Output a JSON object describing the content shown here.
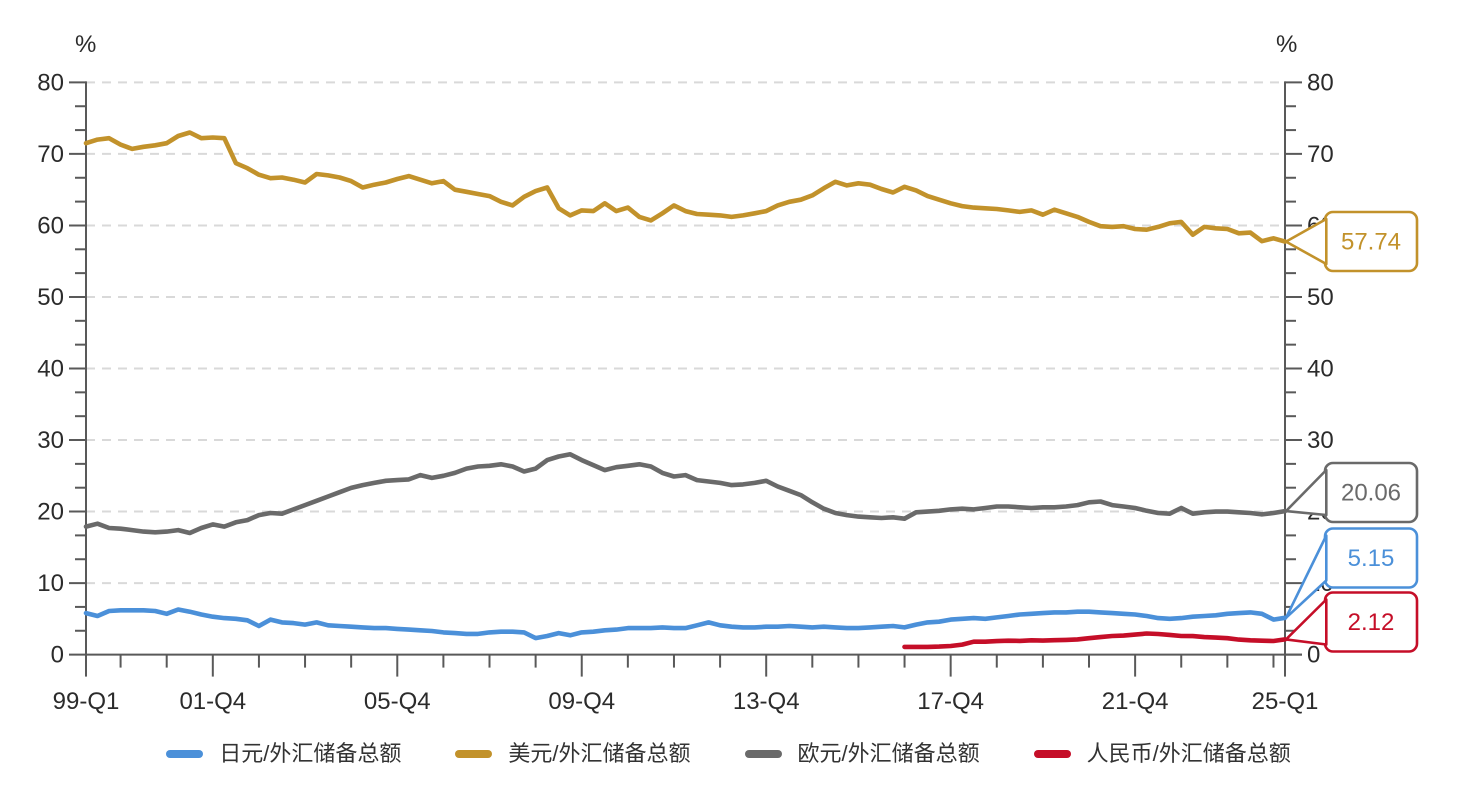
{
  "chart_data": {
    "type": "line",
    "title": "",
    "x_unit": "quarter",
    "x_start": "1999-Q1",
    "x_end": "2025-Q1",
    "x_tick_labels": [
      {
        "label": "99-Q1",
        "q": 0
      },
      {
        "label": "01-Q4",
        "q": 11
      },
      {
        "label": "05-Q4",
        "q": 27
      },
      {
        "label": "09-Q4",
        "q": 43
      },
      {
        "label": "13-Q4",
        "q": 59
      },
      {
        "label": "17-Q4",
        "q": 75
      },
      {
        "label": "21-Q4",
        "q": 91
      },
      {
        "label": "25-Q1",
        "q": 104
      }
    ],
    "y_axis": {
      "unit_left": "%",
      "unit_right": "%",
      "min": 0,
      "max": 80,
      "major_step": 10,
      "minor_divisions_per_major": 3,
      "labels": [
        "0",
        "10",
        "20",
        "30",
        "40",
        "50",
        "60",
        "70",
        "80"
      ]
    },
    "grid": {
      "style": "dashed-horizontal",
      "color": "#D9D9D9"
    },
    "legend_position": "bottom",
    "series": [
      {
        "key": "jpy",
        "name": "日元/外汇储备总额",
        "color": "#4B90D9",
        "start_q": 0,
        "end_value_label": "5.15",
        "values": [
          5.8,
          5.4,
          6.1,
          6.2,
          6.2,
          6.2,
          6.1,
          5.7,
          6.3,
          6.0,
          5.6,
          5.3,
          5.1,
          5.0,
          4.8,
          4.0,
          4.9,
          4.5,
          4.4,
          4.2,
          4.5,
          4.1,
          4.0,
          3.9,
          3.8,
          3.7,
          3.7,
          3.6,
          3.5,
          3.4,
          3.3,
          3.1,
          3.0,
          2.9,
          2.9,
          3.1,
          3.2,
          3.2,
          3.1,
          2.3,
          2.6,
          3.0,
          2.7,
          3.1,
          3.2,
          3.4,
          3.5,
          3.7,
          3.7,
          3.7,
          3.8,
          3.7,
          3.7,
          4.1,
          4.5,
          4.1,
          3.9,
          3.8,
          3.8,
          3.9,
          3.9,
          4.0,
          3.9,
          3.8,
          3.9,
          3.8,
          3.7,
          3.7,
          3.8,
          3.9,
          4.0,
          3.8,
          4.2,
          4.5,
          4.6,
          4.9,
          5.0,
          5.1,
          5.0,
          5.2,
          5.4,
          5.6,
          5.7,
          5.8,
          5.9,
          5.9,
          6.0,
          6.0,
          5.9,
          5.8,
          5.7,
          5.6,
          5.4,
          5.1,
          5.0,
          5.1,
          5.3,
          5.4,
          5.5,
          5.7,
          5.8,
          5.9,
          5.7,
          4.9,
          5.15
        ]
      },
      {
        "key": "usd",
        "name": "美元/外汇储备总额",
        "color": "#C2922B",
        "start_q": 0,
        "end_value_label": "57.74",
        "values": [
          71.5,
          72.0,
          72.2,
          71.3,
          70.7,
          71.0,
          71.2,
          71.5,
          72.5,
          73.0,
          72.2,
          72.3,
          72.2,
          68.7,
          68.0,
          67.1,
          66.6,
          66.7,
          66.4,
          66.0,
          67.2,
          67.0,
          66.7,
          66.2,
          65.3,
          65.7,
          66.0,
          66.5,
          66.9,
          66.4,
          65.9,
          66.2,
          65.0,
          64.7,
          64.4,
          64.1,
          63.3,
          62.8,
          64.0,
          64.8,
          65.3,
          62.4,
          61.4,
          62.1,
          62.0,
          63.1,
          62.0,
          62.5,
          61.2,
          60.7,
          61.7,
          62.8,
          62.0,
          61.6,
          61.5,
          61.4,
          61.2,
          61.4,
          61.7,
          62.0,
          62.8,
          63.3,
          63.6,
          64.2,
          65.2,
          66.1,
          65.6,
          65.9,
          65.7,
          65.1,
          64.6,
          65.4,
          64.9,
          64.1,
          63.6,
          63.1,
          62.7,
          62.5,
          62.4,
          62.3,
          62.1,
          61.9,
          62.1,
          61.5,
          62.2,
          61.7,
          61.2,
          60.5,
          59.9,
          59.8,
          59.9,
          59.5,
          59.4,
          59.8,
          60.3,
          60.5,
          58.7,
          59.8,
          59.6,
          59.5,
          58.9,
          59.0,
          57.8,
          58.2,
          57.74
        ]
      },
      {
        "key": "eur",
        "name": "欧元/外汇储备总额",
        "color": "#6A6A6A",
        "start_q": 0,
        "end_value_label": "20.06",
        "values": [
          17.9,
          18.3,
          17.7,
          17.6,
          17.4,
          17.2,
          17.1,
          17.2,
          17.4,
          17.0,
          17.7,
          18.2,
          17.9,
          18.5,
          18.8,
          19.5,
          19.8,
          19.7,
          20.3,
          20.9,
          21.5,
          22.1,
          22.7,
          23.3,
          23.7,
          24.0,
          24.3,
          24.4,
          24.5,
          25.1,
          24.7,
          25.0,
          25.4,
          26.0,
          26.3,
          26.4,
          26.6,
          26.3,
          25.6,
          26.0,
          27.2,
          27.7,
          28.0,
          27.2,
          26.5,
          25.8,
          26.2,
          26.4,
          26.6,
          26.3,
          25.4,
          24.9,
          25.1,
          24.4,
          24.2,
          24.0,
          23.7,
          23.8,
          24.0,
          24.3,
          23.5,
          22.9,
          22.3,
          21.3,
          20.4,
          19.8,
          19.5,
          19.3,
          19.2,
          19.1,
          19.2,
          19.0,
          19.9,
          20.0,
          20.1,
          20.3,
          20.4,
          20.3,
          20.5,
          20.7,
          20.7,
          20.6,
          20.5,
          20.6,
          20.6,
          20.7,
          20.9,
          21.3,
          21.4,
          20.9,
          20.7,
          20.5,
          20.1,
          19.8,
          19.7,
          20.5,
          19.7,
          19.9,
          20.0,
          20.0,
          19.9,
          19.8,
          19.6,
          19.8,
          20.06
        ]
      },
      {
        "key": "cny",
        "name": "人民币/外汇储备总额",
        "color": "#C50E28",
        "start_q": 71,
        "end_value_label": "2.12",
        "values": [
          1.08,
          1.08,
          1.07,
          1.12,
          1.2,
          1.4,
          1.8,
          1.8,
          1.89,
          1.95,
          1.92,
          2.0,
          1.96,
          2.02,
          2.05,
          2.13,
          2.29,
          2.45,
          2.6,
          2.66,
          2.79,
          2.95,
          2.88,
          2.75,
          2.6,
          2.58,
          2.45,
          2.37,
          2.29,
          2.1,
          2.0,
          1.95,
          1.9,
          2.12
        ]
      }
    ]
  },
  "legend": {
    "items": [
      {
        "label": "日元/外汇储备总额",
        "color": "#4B90D9"
      },
      {
        "label": "美元/外汇储备总额",
        "color": "#C2922B"
      },
      {
        "label": "欧元/外汇储备总额",
        "color": "#6A6A6A"
      },
      {
        "label": "人民币/外汇储备总额",
        "color": "#C50E28"
      }
    ]
  },
  "callouts": [
    {
      "series": "usd",
      "value": "57.74",
      "color": "#C2922B"
    },
    {
      "series": "eur",
      "value": "20.06",
      "color": "#6A6A6A"
    },
    {
      "series": "jpy",
      "value": "5.15",
      "color": "#4B90D9"
    },
    {
      "series": "cny",
      "value": "2.12",
      "color": "#C50E28"
    }
  ]
}
